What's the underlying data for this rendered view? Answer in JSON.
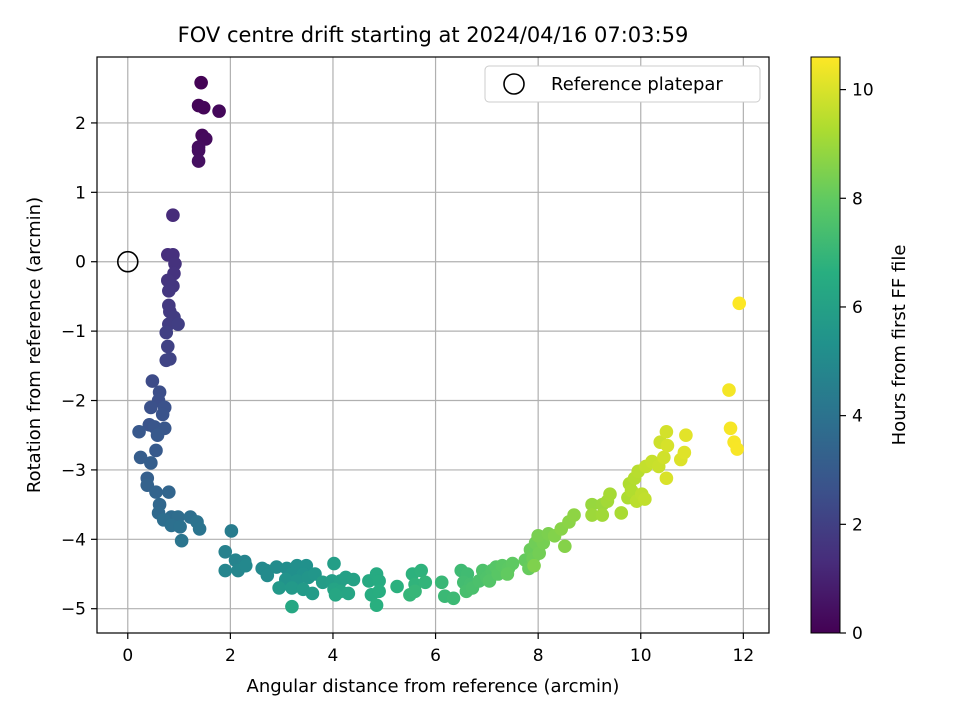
{
  "chart_data": {
    "type": "scatter",
    "title": "FOV centre drift starting at 2024/04/16 07:03:59",
    "xlabel": "Angular distance from reference (arcmin)",
    "ylabel": "Rotation from reference (arcmin)",
    "xlim": [
      -0.6,
      12.5
    ],
    "ylim": [
      -5.35,
      2.95
    ],
    "xticks": [
      0,
      2,
      4,
      6,
      8,
      10,
      12
    ],
    "yticks": [
      -5,
      -4,
      -3,
      -2,
      -1,
      0,
      1,
      2
    ],
    "grid": true,
    "legend": {
      "position": "top-right",
      "entries": [
        "Reference platepar"
      ]
    },
    "reference_point": {
      "label": "Reference platepar",
      "x": 0,
      "y": 0
    },
    "colorbar": {
      "label": "Hours from first FF file",
      "min": 0,
      "max": 10.6,
      "ticks": [
        0,
        2,
        4,
        6,
        8,
        10
      ],
      "colormap": "viridis"
    },
    "series": [
      {
        "points": [
          [
            1.43,
            2.58,
            0.05
          ],
          [
            1.38,
            2.25,
            0.1
          ],
          [
            1.48,
            2.22,
            0.15
          ],
          [
            1.78,
            2.17,
            0.2
          ],
          [
            1.45,
            1.82,
            0.25
          ],
          [
            1.52,
            1.77,
            0.3
          ],
          [
            1.38,
            1.65,
            0.35
          ],
          [
            1.38,
            1.6,
            0.4
          ],
          [
            1.38,
            1.45,
            0.45
          ],
          [
            0.88,
            0.67,
            1.3
          ],
          [
            0.78,
            0.1,
            1.4
          ],
          [
            0.88,
            0.1,
            1.45
          ],
          [
            0.92,
            -0.03,
            1.5
          ],
          [
            0.9,
            -0.17,
            1.55
          ],
          [
            0.78,
            -0.27,
            1.6
          ],
          [
            0.88,
            -0.35,
            1.65
          ],
          [
            0.8,
            -0.42,
            1.7
          ],
          [
            0.8,
            -0.63,
            1.75
          ],
          [
            0.82,
            -0.72,
            1.8
          ],
          [
            0.9,
            -0.8,
            1.85
          ],
          [
            0.8,
            -0.9,
            1.9
          ],
          [
            0.98,
            -0.9,
            1.95
          ],
          [
            0.75,
            -1.02,
            2.0
          ],
          [
            0.78,
            -1.22,
            2.05
          ],
          [
            0.82,
            -1.4,
            2.1
          ],
          [
            0.75,
            -1.42,
            2.15
          ],
          [
            0.48,
            -1.72,
            2.4
          ],
          [
            0.62,
            -1.88,
            2.5
          ],
          [
            0.6,
            -2.0,
            2.55
          ],
          [
            0.45,
            -2.1,
            2.6
          ],
          [
            0.72,
            -2.1,
            2.65
          ],
          [
            0.68,
            -2.2,
            2.7
          ],
          [
            0.42,
            -2.35,
            2.75
          ],
          [
            0.52,
            -2.38,
            2.8
          ],
          [
            0.72,
            -2.4,
            2.85
          ],
          [
            0.22,
            -2.45,
            2.9
          ],
          [
            0.58,
            -2.5,
            2.95
          ],
          [
            0.55,
            -2.72,
            3.0
          ],
          [
            0.25,
            -2.82,
            3.1
          ],
          [
            0.45,
            -2.9,
            3.15
          ],
          [
            0.38,
            -3.12,
            3.2
          ],
          [
            0.38,
            -3.22,
            3.3
          ],
          [
            0.55,
            -3.32,
            3.4
          ],
          [
            0.8,
            -3.32,
            3.45
          ],
          [
            0.62,
            -3.5,
            3.5
          ],
          [
            0.6,
            -3.62,
            3.6
          ],
          [
            0.85,
            -3.68,
            3.7
          ],
          [
            0.98,
            -3.68,
            3.75
          ],
          [
            0.7,
            -3.72,
            3.8
          ],
          [
            1.22,
            -3.68,
            3.85
          ],
          [
            0.85,
            -3.8,
            3.9
          ],
          [
            1.02,
            -3.82,
            3.95
          ],
          [
            1.35,
            -3.75,
            4.0
          ],
          [
            1.4,
            -3.85,
            4.05
          ],
          [
            1.05,
            -4.02,
            4.1
          ],
          [
            2.02,
            -3.88,
            4.4
          ],
          [
            1.9,
            -4.18,
            4.6
          ],
          [
            2.1,
            -4.3,
            4.7
          ],
          [
            2.28,
            -4.32,
            4.75
          ],
          [
            1.9,
            -4.45,
            4.8
          ],
          [
            2.15,
            -4.45,
            4.85
          ],
          [
            2.3,
            -4.38,
            4.9
          ],
          [
            2.62,
            -4.42,
            4.95
          ],
          [
            2.7,
            -4.45,
            5.0
          ],
          [
            2.72,
            -4.52,
            5.05
          ],
          [
            2.9,
            -4.4,
            5.1
          ],
          [
            3.1,
            -4.42,
            5.15
          ],
          [
            3.3,
            -4.38,
            5.2
          ],
          [
            3.2,
            -4.5,
            5.25
          ],
          [
            3.48,
            -4.38,
            5.3
          ],
          [
            3.42,
            -4.5,
            5.35
          ],
          [
            3.08,
            -4.58,
            5.4
          ],
          [
            3.3,
            -4.6,
            5.45
          ],
          [
            3.52,
            -4.55,
            5.5
          ],
          [
            3.65,
            -4.5,
            5.55
          ],
          [
            2.95,
            -4.7,
            5.6
          ],
          [
            3.2,
            -4.7,
            5.65
          ],
          [
            3.42,
            -4.72,
            5.7
          ],
          [
            3.6,
            -4.78,
            5.75
          ],
          [
            3.8,
            -4.62,
            5.8
          ],
          [
            3.98,
            -4.6,
            5.85
          ],
          [
            4.02,
            -4.35,
            5.9
          ],
          [
            4.15,
            -4.6,
            5.95
          ],
          [
            4.25,
            -4.55,
            6.0
          ],
          [
            4.4,
            -4.58,
            6.05
          ],
          [
            4.02,
            -4.72,
            6.1
          ],
          [
            4.15,
            -4.75,
            6.15
          ],
          [
            4.3,
            -4.78,
            6.2
          ],
          [
            4.05,
            -4.8,
            6.25
          ],
          [
            3.2,
            -4.97,
            6.3
          ],
          [
            4.7,
            -4.6,
            6.4
          ],
          [
            4.85,
            -4.5,
            6.45
          ],
          [
            4.9,
            -4.6,
            6.5
          ],
          [
            4.75,
            -4.8,
            6.55
          ],
          [
            4.9,
            -4.75,
            6.6
          ],
          [
            4.85,
            -4.95,
            6.65
          ],
          [
            5.25,
            -4.68,
            6.7
          ],
          [
            5.55,
            -4.5,
            6.75
          ],
          [
            5.72,
            -4.45,
            6.8
          ],
          [
            5.6,
            -4.65,
            6.85
          ],
          [
            5.8,
            -4.62,
            6.9
          ],
          [
            5.5,
            -4.8,
            6.95
          ],
          [
            5.6,
            -4.75,
            7.0
          ],
          [
            6.12,
            -4.62,
            7.05
          ],
          [
            6.18,
            -4.82,
            7.1
          ],
          [
            6.35,
            -4.85,
            7.15
          ],
          [
            6.5,
            -4.45,
            7.2
          ],
          [
            6.62,
            -4.5,
            7.25
          ],
          [
            6.55,
            -4.62,
            7.3
          ],
          [
            6.68,
            -4.65,
            7.35
          ],
          [
            6.6,
            -4.75,
            7.4
          ],
          [
            6.72,
            -4.7,
            7.45
          ],
          [
            6.85,
            -4.6,
            7.5
          ],
          [
            6.92,
            -4.45,
            7.55
          ],
          [
            7.0,
            -4.55,
            7.6
          ],
          [
            7.1,
            -4.45,
            7.65
          ],
          [
            7.05,
            -4.6,
            7.7
          ],
          [
            7.18,
            -4.4,
            7.75
          ],
          [
            7.22,
            -4.5,
            7.8
          ],
          [
            7.3,
            -4.38,
            7.85
          ],
          [
            7.42,
            -4.42,
            7.9
          ],
          [
            7.5,
            -4.35,
            7.95
          ],
          [
            7.4,
            -4.5,
            8.0
          ],
          [
            7.75,
            -4.3,
            8.05
          ],
          [
            7.82,
            -4.42,
            8.1
          ],
          [
            7.85,
            -4.15,
            8.15
          ],
          [
            7.9,
            -4.28,
            8.2
          ],
          [
            7.95,
            -4.05,
            8.25
          ],
          [
            8.02,
            -4.2,
            8.3
          ],
          [
            8.1,
            -4.05,
            8.35
          ],
          [
            8.0,
            -3.95,
            8.4
          ],
          [
            8.2,
            -3.92,
            8.45
          ],
          [
            7.92,
            -4.38,
            8.5
          ],
          [
            8.32,
            -3.95,
            8.55
          ],
          [
            8.52,
            -4.1,
            8.6
          ],
          [
            8.45,
            -3.85,
            8.65
          ],
          [
            8.6,
            -3.75,
            8.7
          ],
          [
            8.7,
            -3.65,
            8.75
          ],
          [
            9.05,
            -3.5,
            8.9
          ],
          [
            9.25,
            -3.5,
            8.95
          ],
          [
            9.05,
            -3.65,
            9.0
          ],
          [
            9.25,
            -3.65,
            9.05
          ],
          [
            9.35,
            -3.45,
            9.1
          ],
          [
            9.4,
            -3.35,
            9.15
          ],
          [
            9.62,
            -3.62,
            9.2
          ],
          [
            9.75,
            -3.4,
            9.25
          ],
          [
            9.78,
            -3.2,
            9.3
          ],
          [
            9.82,
            -3.3,
            9.35
          ],
          [
            9.88,
            -3.12,
            9.4
          ],
          [
            9.95,
            -3.02,
            9.45
          ],
          [
            9.92,
            -3.45,
            9.5
          ],
          [
            10.02,
            -3.35,
            9.55
          ],
          [
            10.08,
            -3.42,
            9.6
          ],
          [
            10.1,
            -2.95,
            9.65
          ],
          [
            10.22,
            -2.88,
            9.7
          ],
          [
            10.35,
            -2.95,
            9.75
          ],
          [
            10.38,
            -2.6,
            9.8
          ],
          [
            10.45,
            -2.82,
            9.85
          ],
          [
            10.5,
            -2.45,
            9.9
          ],
          [
            10.52,
            -2.65,
            9.95
          ],
          [
            10.5,
            -3.12,
            10.0
          ],
          [
            10.78,
            -2.85,
            10.05
          ],
          [
            10.85,
            -2.75,
            10.1
          ],
          [
            10.88,
            -2.5,
            10.15
          ],
          [
            11.72,
            -1.85,
            10.45
          ],
          [
            11.75,
            -2.4,
            10.48
          ],
          [
            11.82,
            -2.6,
            10.5
          ],
          [
            11.88,
            -2.7,
            10.52
          ],
          [
            11.92,
            -0.6,
            10.58
          ]
        ]
      }
    ]
  }
}
